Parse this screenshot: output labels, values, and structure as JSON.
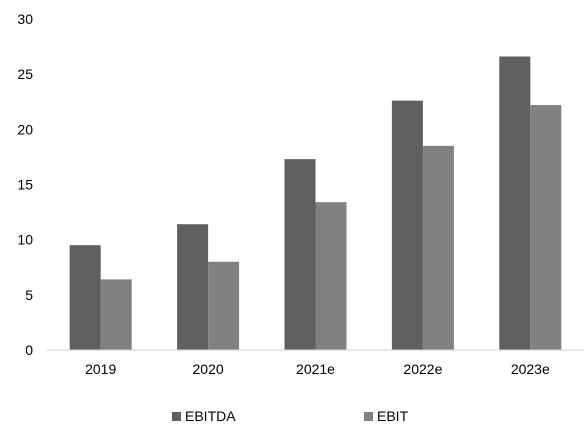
{
  "chart_data": {
    "type": "bar",
    "title": "",
    "xlabel": "",
    "ylabel": "",
    "categories": [
      "2019",
      "2020",
      "2021e",
      "2022e",
      "2023e"
    ],
    "series": [
      {
        "name": "EBITDA",
        "color": "#5f5f5f",
        "values": [
          9.5,
          11.4,
          17.3,
          22.6,
          26.6
        ]
      },
      {
        "name": "EBIT",
        "color": "#818181",
        "values": [
          6.4,
          8.0,
          13.4,
          18.5,
          22.2
        ]
      }
    ],
    "ylim": [
      0,
      30
    ],
    "yticks": [
      "0",
      "5",
      "10",
      "15",
      "20",
      "25",
      "30"
    ],
    "grid": false,
    "legend": "bottom"
  }
}
